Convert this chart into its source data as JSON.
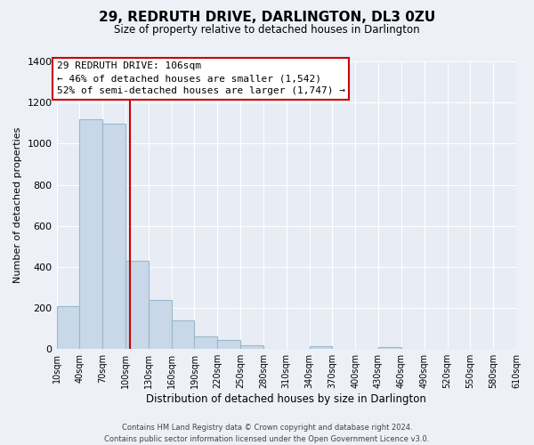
{
  "title": "29, REDRUTH DRIVE, DARLINGTON, DL3 0ZU",
  "subtitle": "Size of property relative to detached houses in Darlington",
  "xlabel": "Distribution of detached houses by size in Darlington",
  "ylabel": "Number of detached properties",
  "bar_color": "#c8d8e8",
  "bar_edge_color": "#9ab8cc",
  "bin_edges": [
    10,
    40,
    70,
    100,
    130,
    160,
    190,
    220,
    250,
    280,
    310,
    340,
    370,
    400,
    430,
    460,
    490,
    520,
    550,
    580,
    610
  ],
  "bin_labels": [
    "10sqm",
    "40sqm",
    "70sqm",
    "100sqm",
    "130sqm",
    "160sqm",
    "190sqm",
    "220sqm",
    "250sqm",
    "280sqm",
    "310sqm",
    "340sqm",
    "370sqm",
    "400sqm",
    "430sqm",
    "460sqm",
    "490sqm",
    "520sqm",
    "550sqm",
    "580sqm",
    "610sqm"
  ],
  "counts": [
    210,
    1120,
    1095,
    430,
    240,
    140,
    60,
    45,
    20,
    0,
    0,
    15,
    0,
    0,
    10,
    0,
    0,
    0,
    0,
    0
  ],
  "property_line_x": 106,
  "vline_color": "#cc0000",
  "annotation_title": "29 REDRUTH DRIVE: 106sqm",
  "annotation_line1": "← 46% of detached houses are smaller (1,542)",
  "annotation_line2": "52% of semi-detached houses are larger (1,747) →",
  "annotation_box_color": "#ffffff",
  "annotation_box_edge": "#cc0000",
  "ylim": [
    0,
    1400
  ],
  "yticks": [
    0,
    200,
    400,
    600,
    800,
    1000,
    1200,
    1400
  ],
  "footer_line1": "Contains HM Land Registry data © Crown copyright and database right 2024.",
  "footer_line2": "Contains public sector information licensed under the Open Government Licence v3.0.",
  "background_color": "#eef0f8",
  "grid_color": "#ffffff",
  "plot_bg_color": "#e8ecf4"
}
